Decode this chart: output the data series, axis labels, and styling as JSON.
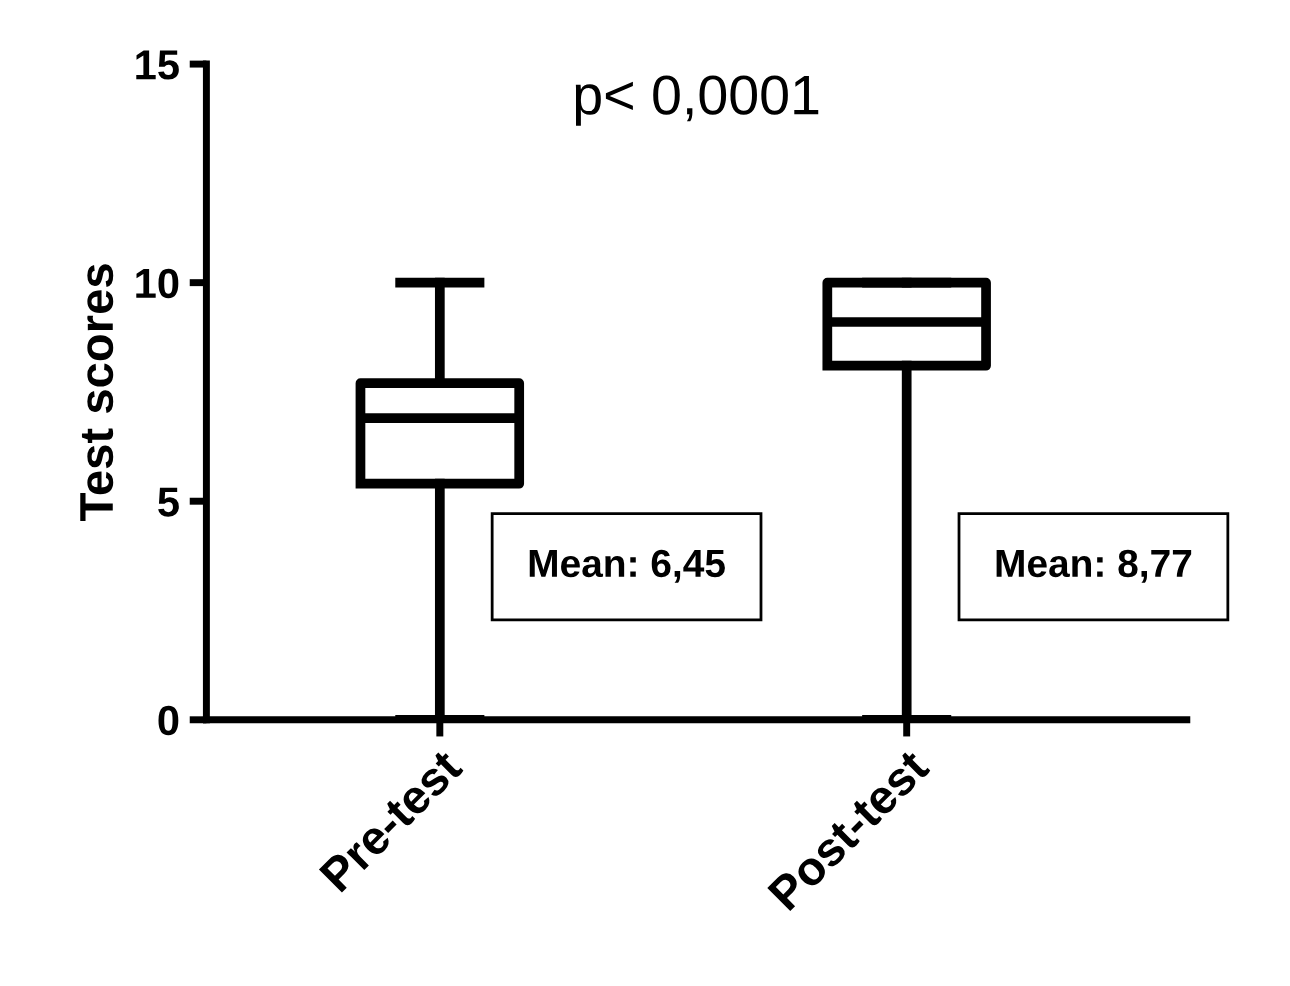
{
  "chart_data": {
    "type": "box",
    "title": "p< 0,0001",
    "ylabel": "Test scores",
    "categories": [
      "Pre-test",
      "Post-test"
    ],
    "boxes": [
      {
        "low": 0,
        "q1": 5.4,
        "median": 6.9,
        "q3": 7.7,
        "high": 10
      },
      {
        "low": 0,
        "q1": 8.1,
        "median": 9.1,
        "q3": 10,
        "high": 10
      }
    ],
    "color": "#000000",
    "ylim": [
      0,
      15
    ],
    "yticks": [
      0,
      5,
      10,
      15
    ],
    "grid": false,
    "legend": false,
    "annotations": [
      "Mean: 6,45",
      "Mean: 8,77"
    ]
  }
}
